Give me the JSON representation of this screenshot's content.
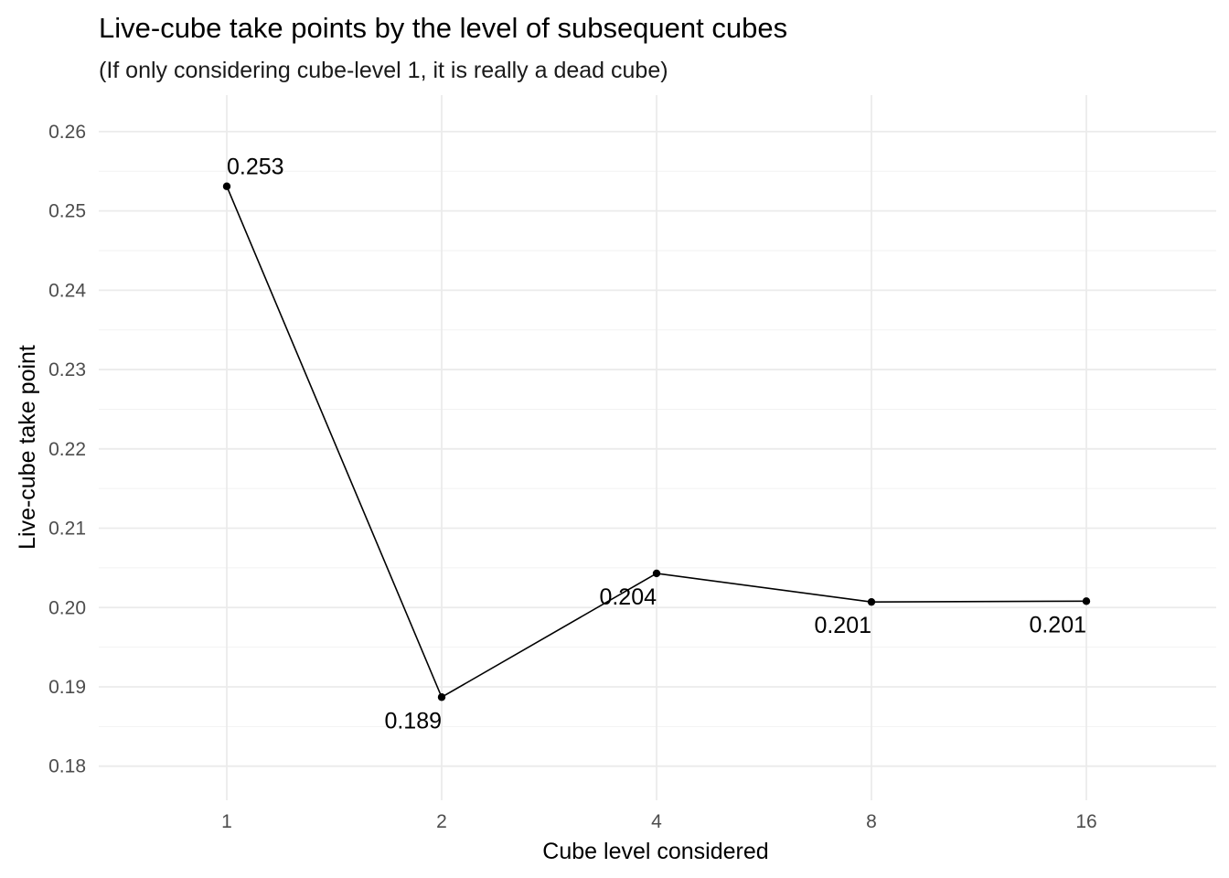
{
  "chart_data": {
    "type": "line",
    "title": "Live-cube take points by the level of subsequent cubes",
    "subtitle": "(If only considering cube-level 1, it is really a dead cube)",
    "xlabel": "Cube level considered",
    "ylabel": "Live-cube take point",
    "categories": [
      "1",
      "2",
      "4",
      "8",
      "16"
    ],
    "series": [
      {
        "values": [
          0.2531,
          0.1887,
          0.2043,
          0.2007,
          0.2008
        ],
        "labels": [
          "0.253",
          "0.189",
          "0.204",
          "0.201",
          "0.201"
        ],
        "color": "#000000"
      }
    ],
    "yticks": [
      "0.18",
      "0.19",
      "0.20",
      "0.21",
      "0.22",
      "0.23",
      "0.24",
      "0.25",
      "0.26"
    ],
    "ylim": [
      0.1757,
      0.2646
    ],
    "grid": true,
    "legend": "none"
  }
}
